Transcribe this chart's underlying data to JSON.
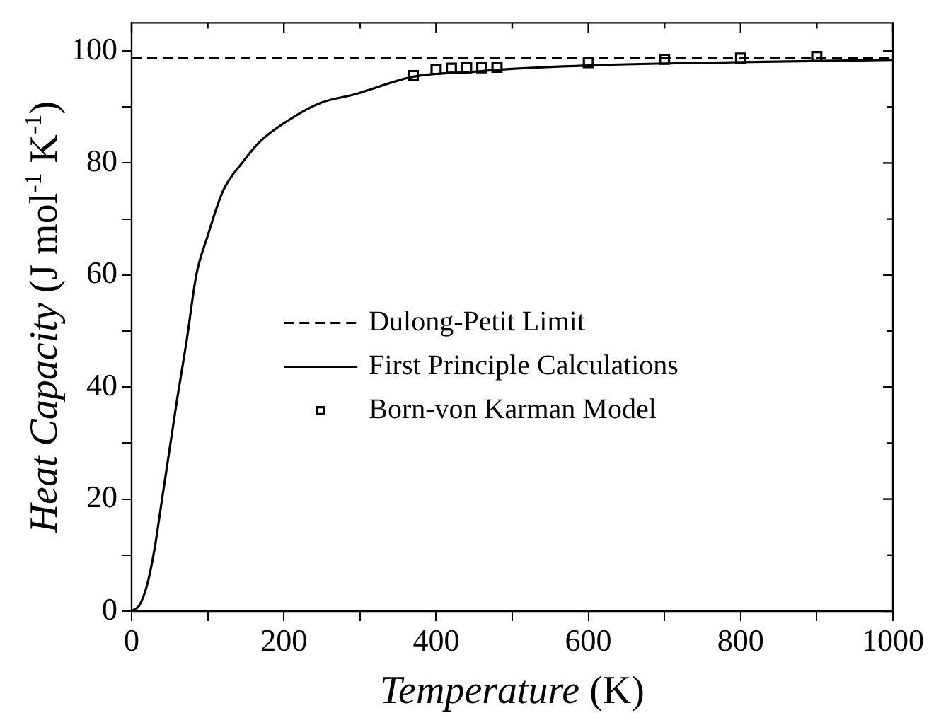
{
  "chart_data": {
    "type": "line",
    "xlabel": "Temperature (K)",
    "ylabel": "Heat Capacity (J mol$^{-1}$ K$^{-1}$)",
    "xlim": [
      0,
      1000
    ],
    "ylim": [
      0,
      105
    ],
    "xticks": [
      0,
      {
        "value": 100,
        "label": null
      },
      200,
      {
        "value": 300,
        "label": null
      },
      400,
      {
        "value": 500,
        "label": null
      },
      600,
      {
        "value": 700,
        "label": null
      },
      800,
      {
        "value": 900,
        "label": null
      },
      1000
    ],
    "yticks": [
      0,
      {
        "value": 10,
        "label": null
      },
      20,
      {
        "value": 30,
        "label": null
      },
      40,
      {
        "value": 50,
        "label": null
      },
      60,
      {
        "value": 70,
        "label": null
      },
      80,
      {
        "value": 90,
        "label": null
      },
      100
    ],
    "grid": false,
    "legend": "center",
    "series": [
      {
        "name": "Dulong-Petit Limit",
        "color": "#000000",
        "line_style": "dashed",
        "marker": "none",
        "x": [
          0,
          1000
        ],
        "values": [
          98.7,
          98.7
        ]
      },
      {
        "name": "First Principle Calculations",
        "color": "#000000",
        "line_style": "solid",
        "marker": "none",
        "x": [
          0,
          10,
          20,
          30,
          40,
          50,
          60,
          72,
          85,
          100,
          120,
          145,
          170,
          214,
          250,
          292,
          370,
          450,
          500,
          600,
          800,
          1000
        ],
        "values": [
          0,
          1,
          4.5,
          11,
          20,
          29,
          38,
          48,
          60,
          67,
          75,
          80,
          84,
          88.3,
          90.8,
          92.2,
          95.4,
          96.3,
          96.8,
          97.4,
          98,
          98.4
        ]
      },
      {
        "name": "Born-von Karman Model",
        "type": "scatter",
        "color": "#000000",
        "marker": "square",
        "x": [
          370,
          400,
          420,
          440,
          460,
          480,
          600,
          700,
          800,
          900
        ],
        "values": [
          95.6,
          96.7,
          96.9,
          97,
          97,
          97.1,
          97.9,
          98.5,
          98.7,
          99
        ]
      }
    ]
  }
}
